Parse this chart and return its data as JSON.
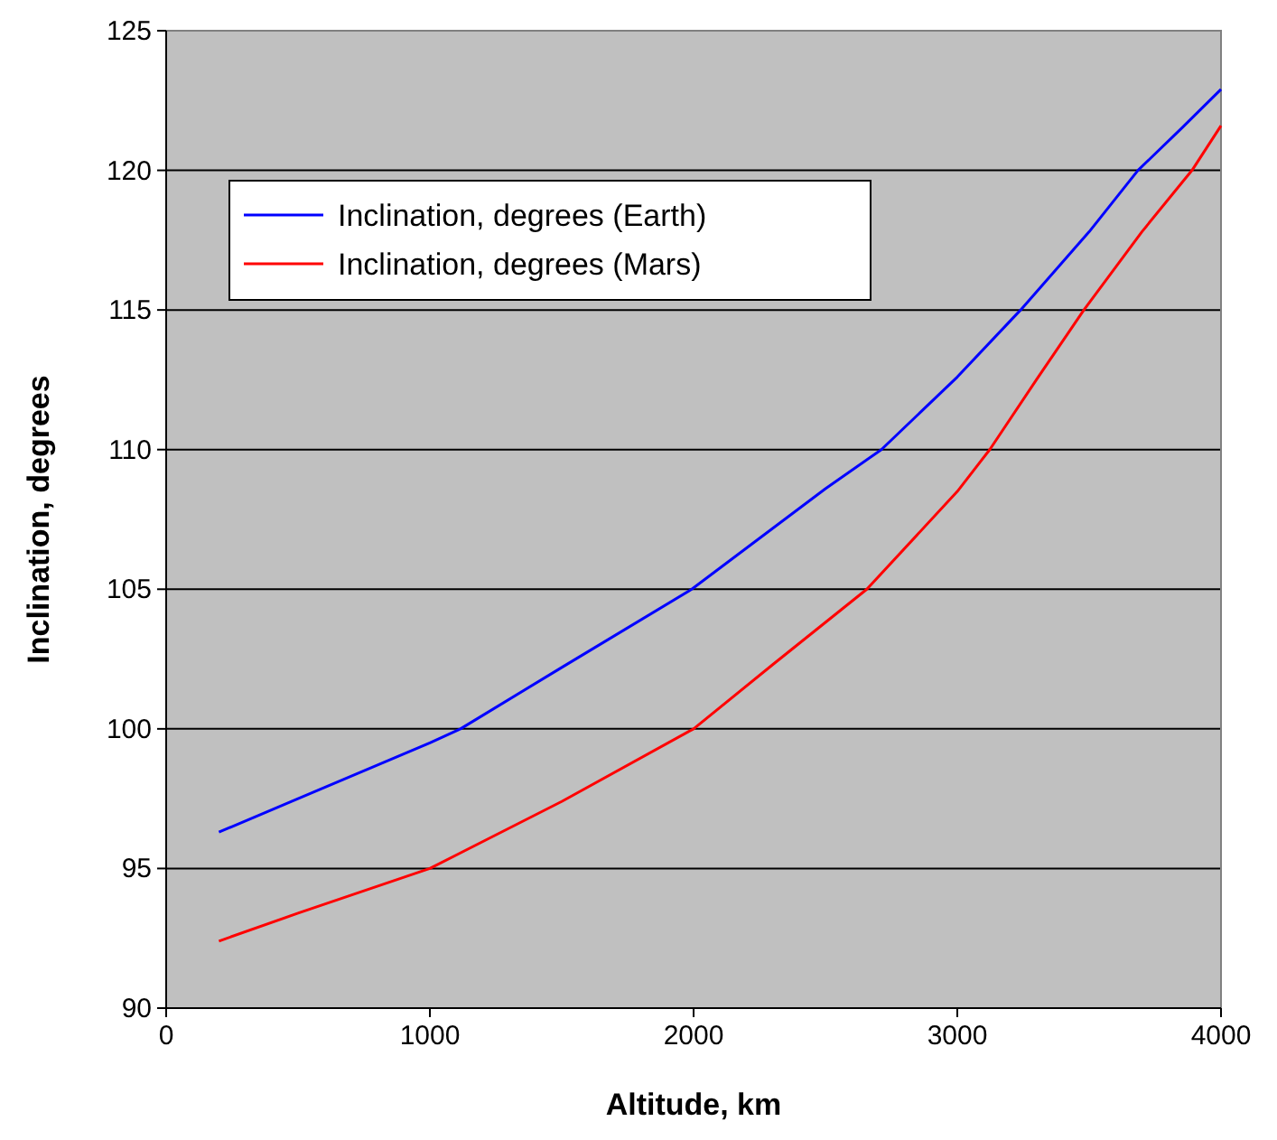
{
  "chart_data": {
    "type": "line",
    "xlabel": "Altitude, km",
    "ylabel": "Inclination, degrees",
    "xlim": [
      0,
      4000
    ],
    "xticks": [
      0,
      1000,
      2000,
      3000,
      4000
    ],
    "ylim": [
      90,
      125
    ],
    "yticks": [
      90,
      95,
      100,
      105,
      110,
      115,
      120,
      125
    ],
    "grid": "y",
    "legend": "top left",
    "marker": "none",
    "line_style": "solid",
    "x": [
      200,
      500,
      1000,
      1116,
      1500,
      1993,
      2500,
      2712,
      3000,
      3240,
      3500,
      3685,
      3850,
      4000
    ],
    "series": [
      {
        "name": "Inclination, degrees (Earth)",
        "color": "#0000ff",
        "values": [
          96.3,
          97.5,
          99.5,
          100,
          102.2,
          105,
          108.6,
          110,
          112.6,
          115,
          117.8,
          120,
          121.5,
          122.9
        ]
      },
      {
        "name": "Inclination, degrees (Mars)",
        "color": "#ff0000",
        "x": [
          200,
          500,
          1000,
          1500,
          2000,
          2300,
          2657,
          3000,
          3123,
          3300,
          3480,
          3700,
          3890,
          4000
        ],
        "values": [
          92.4,
          93.4,
          95,
          97.4,
          100,
          102.3,
          105,
          108.5,
          110,
          112.5,
          115,
          117.8,
          120,
          121.6
        ]
      }
    ]
  }
}
